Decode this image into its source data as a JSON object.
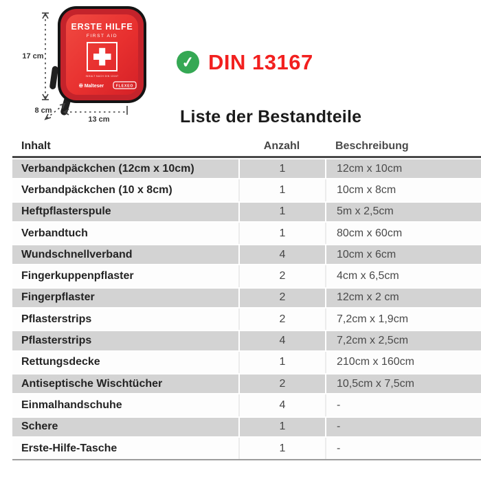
{
  "product": {
    "case": {
      "title": "ERSTE HILFE",
      "subtitle": "FIRST AID",
      "small_text": "INHALT NACH DIN 13167",
      "brand_left": "✠ Malteser",
      "brand_right": "FLEXEO"
    },
    "dimensions": {
      "height": "17 cm",
      "depth": "8 cm",
      "width": "13 cm"
    }
  },
  "badge": {
    "check_glyph": "✓",
    "label": "DIN 13167"
  },
  "section": {
    "title": "Liste der Bestandteile"
  },
  "table": {
    "headers": {
      "inhalt": "Inhalt",
      "anzahl": "Anzahl",
      "beschreibung": "Beschreibung"
    },
    "rows": [
      {
        "name": "Verbandpäckchen (12cm x 10cm)",
        "qty": "1",
        "desc": "12cm x 10cm"
      },
      {
        "name": "Verbandpäckchen (10 x 8cm)",
        "qty": "1",
        "desc": "10cm x 8cm"
      },
      {
        "name": "Heftpflasterspule",
        "qty": "1",
        "desc": "5m x 2,5cm"
      },
      {
        "name": "Verbandtuch",
        "qty": "1",
        "desc": "80cm x 60cm"
      },
      {
        "name": "Wundschnellverband",
        "qty": "4",
        "desc": "10cm x 6cm"
      },
      {
        "name": "Fingerkuppenpflaster",
        "qty": "2",
        "desc": "4cm x 6,5cm"
      },
      {
        "name": "Fingerpflaster",
        "qty": "2",
        "desc": "12cm x 2 cm"
      },
      {
        "name": "Pflasterstrips",
        "qty": "2",
        "desc": "7,2cm x 1,9cm"
      },
      {
        "name": "Pflasterstrips",
        "qty": "4",
        "desc": "7,2cm x 2,5cm"
      },
      {
        "name": "Rettungsdecke",
        "qty": "1",
        "desc": "210cm x 160cm"
      },
      {
        "name": "Antiseptische Wischtücher",
        "qty": "2",
        "desc": "10,5cm x 7,5cm"
      },
      {
        "name": "Einmalhandschuhe",
        "qty": "4",
        "desc": "-"
      },
      {
        "name": "Schere",
        "qty": "1",
        "desc": "-"
      },
      {
        "name": "Erste-Hilfe-Tasche",
        "qty": "1",
        "desc": "-"
      }
    ]
  },
  "colors": {
    "din_red": "#f2201f",
    "check_green": "#35a854",
    "case_red": "#e8302f",
    "case_rim_red": "#c4232b",
    "row_shade_gray": "#d3d3d3",
    "header_line": "#484848"
  }
}
